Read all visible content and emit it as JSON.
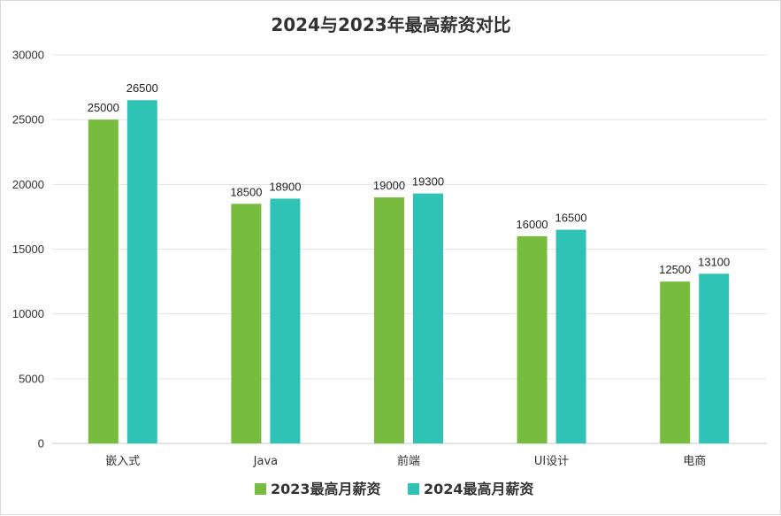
{
  "chart_data": {
    "type": "bar",
    "title": "2024与2023年最高薪资对比",
    "categories": [
      "嵌入式",
      "Java",
      "前端",
      "UI设计",
      "电商"
    ],
    "series": [
      {
        "name": "2023最高月薪资",
        "color": "#77bc3f",
        "values": [
          25000,
          18500,
          19000,
          16000,
          12500
        ]
      },
      {
        "name": "2024最高月薪资",
        "color": "#2ec3b4",
        "values": [
          26500,
          18900,
          19300,
          16500,
          13100
        ]
      }
    ],
    "ylim": [
      0,
      30000
    ],
    "yticks": [
      0,
      5000,
      10000,
      15000,
      20000,
      25000,
      30000
    ],
    "xlabel": "",
    "ylabel": "",
    "grid": true,
    "legend_position": "bottom"
  }
}
